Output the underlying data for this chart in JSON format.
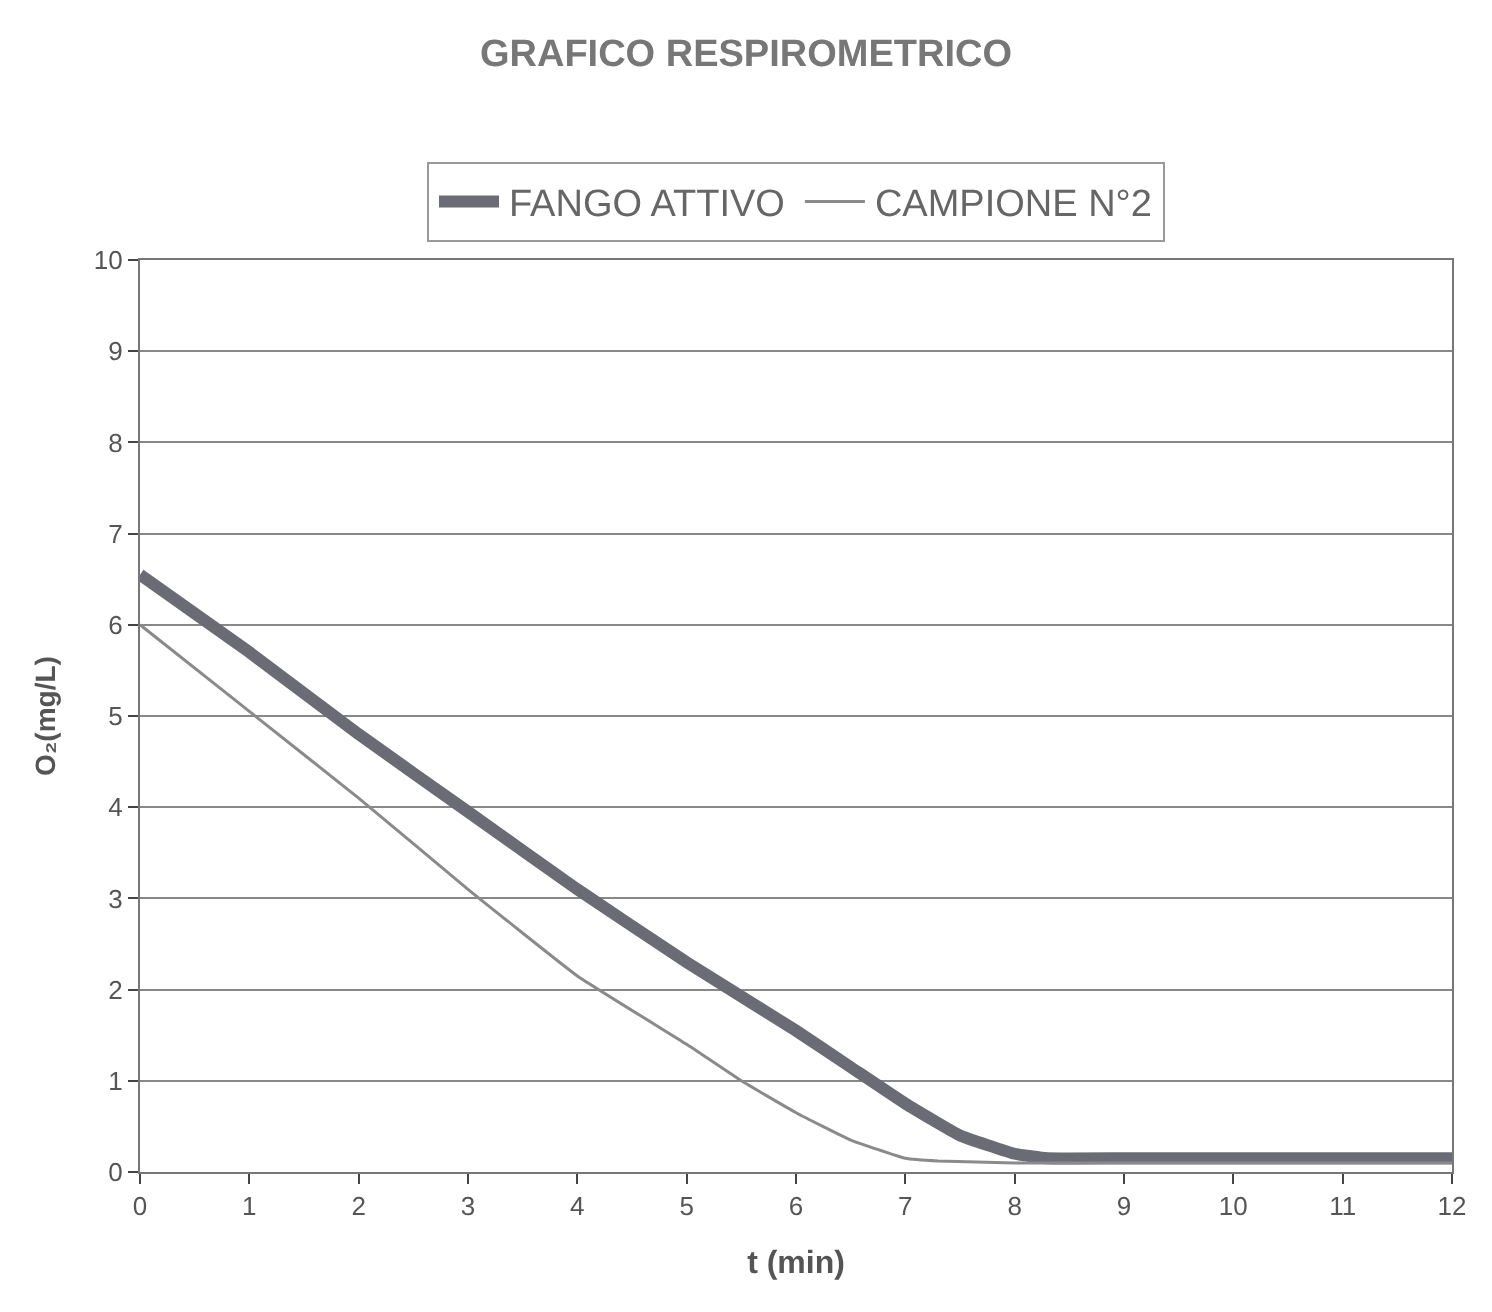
{
  "chart_data": {
    "type": "line",
    "title": "GRAFICO RESPIROMETRICO",
    "xlabel": "t (min)",
    "ylabel": "O₂(mg/L)",
    "series": [
      {
        "name": "FANGO ATTIVO",
        "color": "#6b6b75",
        "x": [
          0,
          1,
          2,
          3,
          4,
          5,
          6,
          6.5,
          7,
          7.5,
          8,
          8.3,
          9,
          10,
          11,
          12
        ],
        "values": [
          6.55,
          5.7,
          4.8,
          3.95,
          3.1,
          2.3,
          1.55,
          1.15,
          0.75,
          0.4,
          0.2,
          0.15,
          0.15,
          0.15,
          0.15,
          0.15
        ]
      },
      {
        "name": "CAMPIONE N°2",
        "color": "#8a8a8a",
        "x": [
          0,
          1,
          2,
          3,
          4,
          5,
          5.5,
          6,
          6.5,
          7,
          7.3,
          8,
          9,
          10,
          11,
          12
        ],
        "values": [
          6.0,
          5.05,
          4.1,
          3.1,
          2.15,
          1.4,
          1.0,
          0.65,
          0.35,
          0.15,
          0.12,
          0.1,
          0.1,
          0.1,
          0.1,
          0.1
        ]
      }
    ],
    "xlim": [
      0,
      12
    ],
    "xticks": [
      0,
      1,
      2,
      3,
      4,
      5,
      6,
      7,
      8,
      9,
      10,
      11,
      12
    ],
    "ylim": [
      0,
      10
    ],
    "yticks": [
      0,
      1,
      2,
      3,
      4,
      5,
      6,
      7,
      8,
      9,
      10
    ],
    "grid": "y",
    "legend": "top",
    "marker": "none",
    "line_style": "solid"
  }
}
